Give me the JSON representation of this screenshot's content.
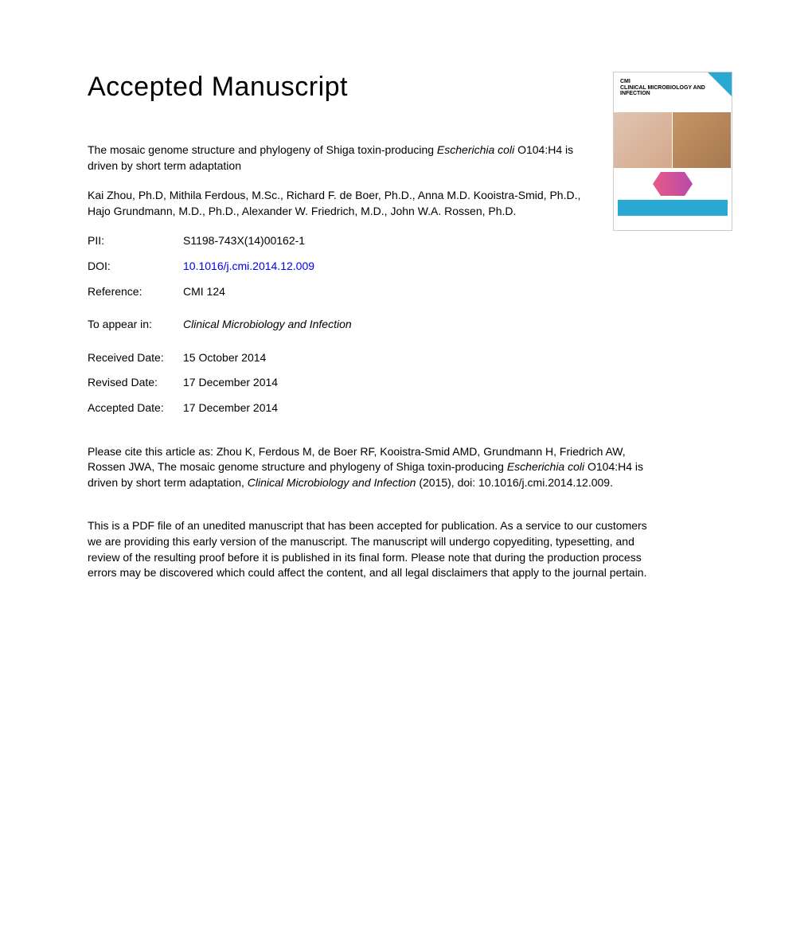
{
  "heading": "Accepted Manuscript",
  "cover": {
    "journal_abbrev": "CMI",
    "journal_name": "CLINICAL MICROBIOLOGY AND INFECTION"
  },
  "title": {
    "part1": "The mosaic genome structure and phylogeny of Shiga toxin-producing ",
    "italic": "Escherichia coli",
    "part2": " O104:H4 is driven by short term adaptation"
  },
  "authors": "Kai Zhou, Ph.D, Mithila Ferdous, M.Sc., Richard F. de Boer, Ph.D., Anna M.D. Kooistra-Smid, Ph.D., Hajo Grundmann, M.D., Ph.D., Alexander W. Friedrich, M.D., John W.A. Rossen, Ph.D.",
  "meta": {
    "pii_label": "PII:",
    "pii_value": "S1198-743X(14)00162-1",
    "doi_label": "DOI:",
    "doi_value": "10.1016/j.cmi.2014.12.009",
    "reference_label": "Reference:",
    "reference_value": "CMI 124",
    "appear_label": "To appear in:",
    "appear_value": "Clinical Microbiology and Infection",
    "received_label": "Received Date:",
    "received_value": "15 October 2014",
    "revised_label": "Revised Date:",
    "revised_value": "17 December 2014",
    "accepted_label": "Accepted Date:",
    "accepted_value": "17 December 2014"
  },
  "citation": {
    "part1": "Please cite this article as: Zhou K, Ferdous M, de Boer RF, Kooistra-Smid AMD, Grundmann H, Friedrich AW, Rossen JWA, The mosaic genome structure and phylogeny of Shiga toxin-producing ",
    "italic1": "Escherichia coli",
    "part2": " O104:H4 is driven by short term adaptation, ",
    "italic2": "Clinical Microbiology and Infection",
    "part3": " (2015), doi: 10.1016/j.cmi.2014.12.009."
  },
  "disclaimer": "This is a PDF file of an unedited manuscript that has been accepted for publication. As a service to our customers we are providing this early version of the manuscript. The manuscript will undergo copyediting, typesetting, and review of the resulting proof before it is published in its final form. Please note that during the production process errors may be discovered which could affect the content, and all legal disclaimers that apply to the journal pertain."
}
